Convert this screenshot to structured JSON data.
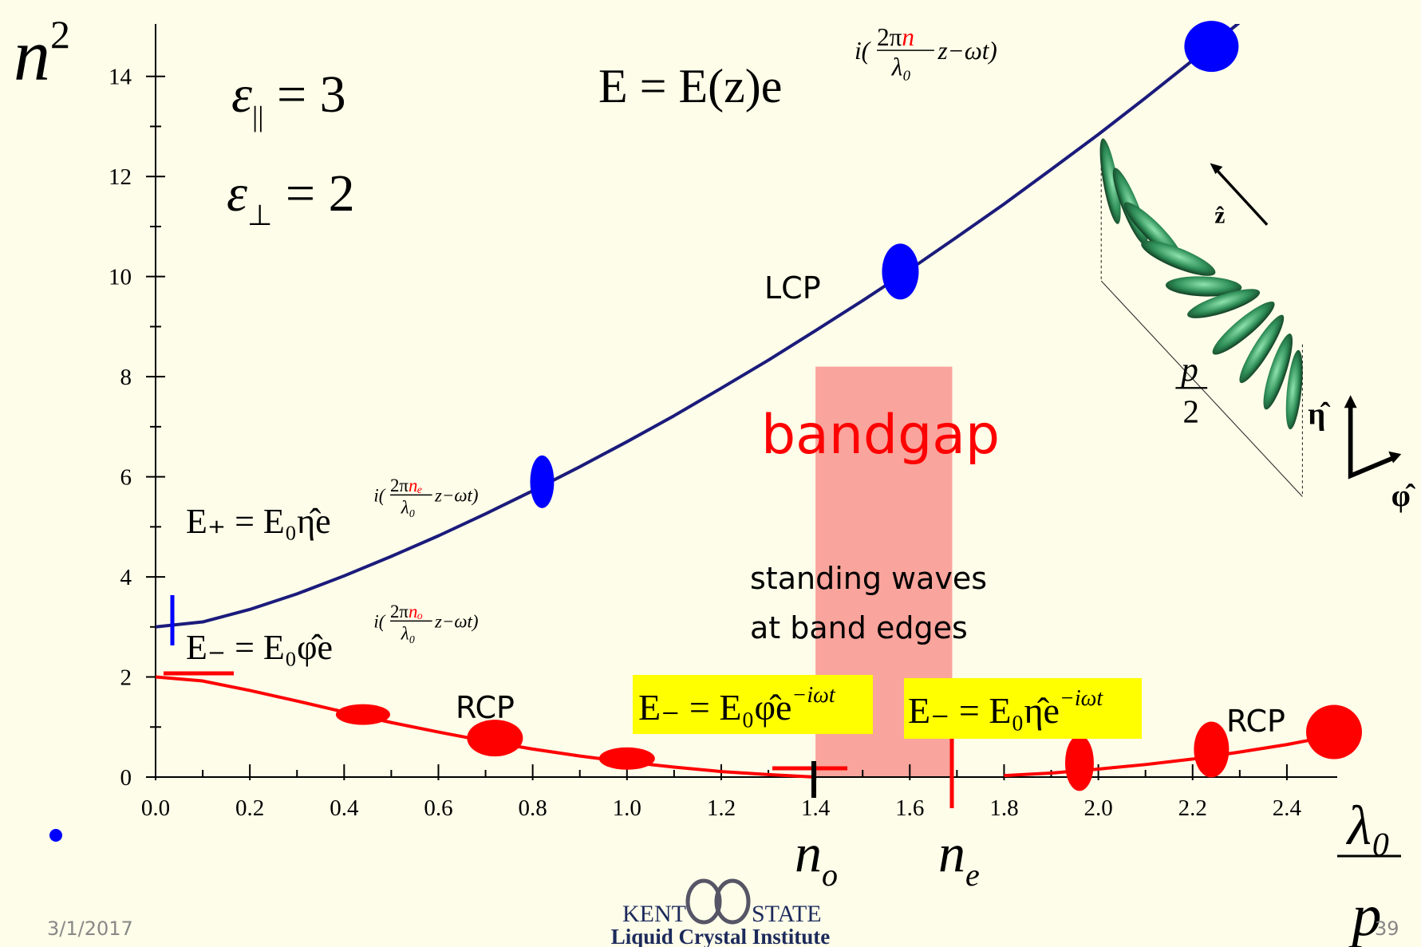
{
  "chart_data": {
    "type": "line",
    "axis_label_y": {
      "base": "n",
      "sup": "2"
    },
    "axis_label_x": {
      "num": "λ₀",
      "den": "p"
    },
    "x": [
      0,
      0.1,
      0.2,
      0.3,
      0.4,
      0.5,
      0.6,
      0.7,
      0.8,
      0.9,
      1.0,
      1.1,
      1.2,
      1.3,
      1.4,
      1.5,
      1.6,
      1.7,
      1.8,
      1.9,
      2.0,
      2.1,
      2.2,
      2.3,
      2.4,
      2.5
    ],
    "series": [
      {
        "name": "LCP",
        "color": "#1b1b7c",
        "marker_color": "#0000ff",
        "values": [
          3.0,
          3.1,
          3.35,
          3.66,
          4.02,
          4.41,
          4.82,
          5.26,
          5.72,
          6.2,
          6.7,
          7.22,
          7.77,
          8.33,
          8.92,
          9.52,
          10.14,
          10.79,
          11.45,
          12.14,
          12.84,
          13.57,
          14.32,
          15.08,
          null,
          null
        ],
        "markers": {
          "x": [
            0.82,
            1.58,
            2.24
          ],
          "y": [
            5.9,
            10.1,
            14.6
          ]
        }
      },
      {
        "name": "RCP",
        "color": "#ff0000",
        "marker_color": "#ff0000",
        "values": [
          2.0,
          1.92,
          1.73,
          1.52,
          1.3,
          1.09,
          0.9,
          0.72,
          0.56,
          0.42,
          0.3,
          0.2,
          0.11,
          0.05,
          0.0,
          null,
          null,
          null,
          0.03,
          0.08,
          0.16,
          0.25,
          0.36,
          0.5,
          0.65,
          0.83
        ],
        "markers": {
          "x": [
            0.44,
            0.72,
            1.0,
            1.96,
            2.24,
            2.5
          ],
          "y": [
            1.25,
            0.78,
            0.37,
            0.28,
            0.55,
            0.9
          ]
        }
      }
    ],
    "xlim": [
      0,
      2.5
    ],
    "ylim": [
      0,
      15
    ],
    "xticks": [
      {
        "value": 0,
        "label": "0.0"
      },
      0.2,
      0.4,
      0.6,
      0.8,
      {
        "value": 1,
        "label": "1.0"
      },
      1.2,
      1.4,
      1.6,
      1.8,
      {
        "value": 2,
        "label": "2.0"
      },
      2.2,
      2.4
    ],
    "yticks": [
      0,
      2,
      4,
      6,
      8,
      10,
      12,
      14
    ],
    "bandgap": {
      "label": "bandgap",
      "xrange": [
        1.4,
        1.69
      ],
      "ymax": 8.2,
      "color": "#f9a49c"
    },
    "annotations": {
      "standing_1": "standing waves",
      "standing_2": "at band edges",
      "n_o": {
        "base": "n",
        "sub": "o"
      },
      "n_e": {
        "base": "n",
        "sub": "e"
      },
      "eps_par": {
        "sym": "ε",
        "sub": "||",
        "rhs": " = 3"
      },
      "eps_perp": {
        "sym": "ε",
        "sub": "⊥",
        "rhs": " = 2"
      },
      "eq_main": {
        "lhs": "E = E(z)e",
        "pre": "i(",
        "num": "2π",
        "var": "n",
        "den": "λ₀",
        "post": "z−ωt)"
      },
      "eq_plus": {
        "lhs": "E₊ = E₀η̂e",
        "pre": "i(",
        "num": "2π",
        "var": "nₑ",
        "den": "λ₀",
        "post": "z−ωt)"
      },
      "eq_minus": {
        "lhs": "E₋ = E₀φ̂e",
        "pre": "i(",
        "num": "2π",
        "var": "nₒ",
        "den": "λ₀",
        "post": "z−ωt)"
      },
      "box_1": {
        "base": "E₋ = E₀φ̂e",
        "exp": "−iωt"
      },
      "box_2": {
        "base": "E₋ = E₀η̂e",
        "exp": "−iωt"
      },
      "helix": {
        "z": "ẑ",
        "eta": "η̂",
        "phi": "φ̂",
        "p": "p",
        "two": "2"
      }
    }
  },
  "footer": {
    "date": "3/1/2017",
    "page": "39",
    "logo_left": "KENT",
    "logo_right": "STATE",
    "logo_sub": "Liquid Crystal Institute"
  }
}
